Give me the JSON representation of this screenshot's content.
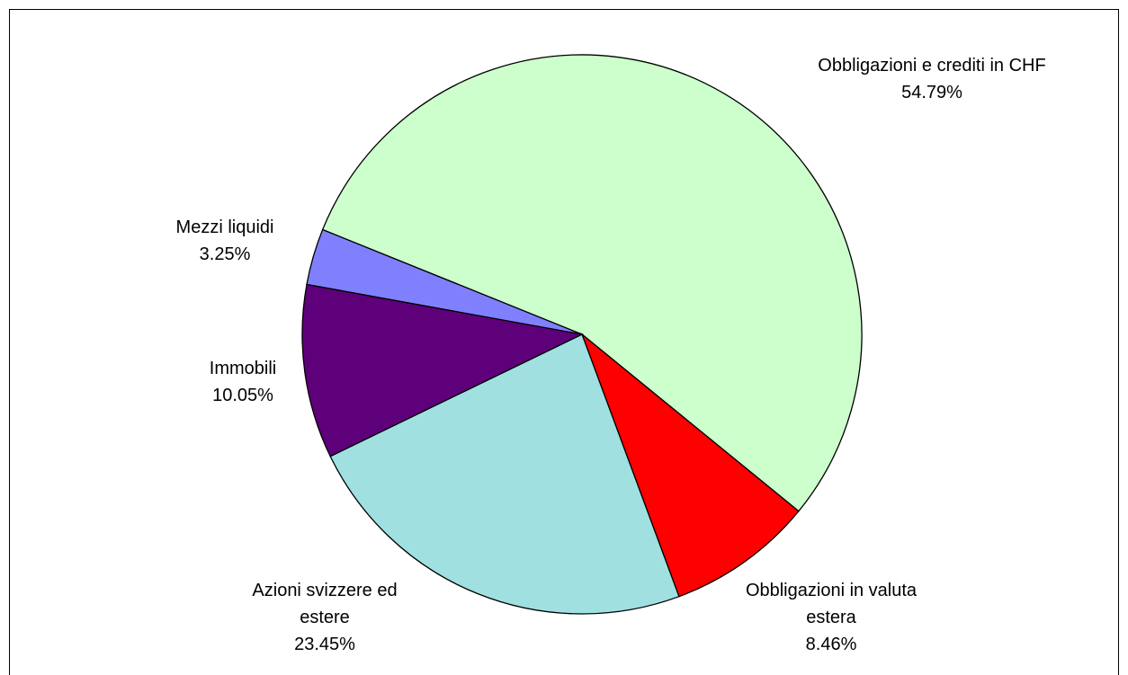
{
  "chart_data": {
    "type": "pie",
    "categories": [
      "Obbligazioni e crediti in CHF",
      "Obbligazioni in valuta estera",
      "Azioni svizzere ed estere",
      "Immobili",
      "Mezzi liquidi"
    ],
    "values": [
      54.79,
      8.46,
      23.45,
      10.05,
      3.25
    ],
    "value_labels": [
      "54.79%",
      "8.46%",
      "23.45%",
      "10.05%",
      "3.25%"
    ],
    "colors": [
      "#ccffcc",
      "#ff0000",
      "#a0e0e0",
      "#5e007a",
      "#8080ff"
    ]
  }
}
